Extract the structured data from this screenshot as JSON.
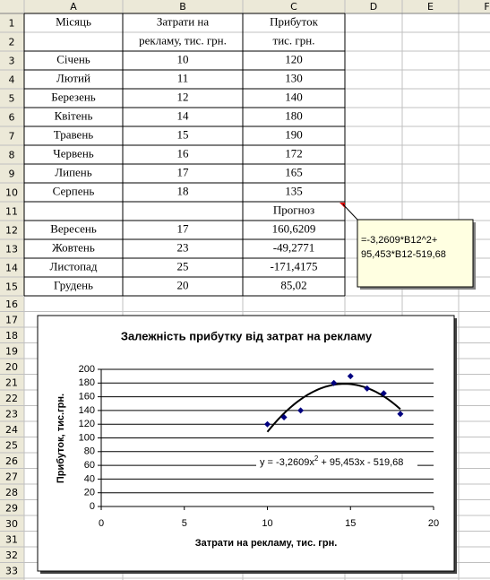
{
  "sheet": {
    "columns": [
      "A",
      "B",
      "C",
      "D",
      "E",
      "F"
    ],
    "row_numbers": [
      1,
      2,
      3,
      4,
      5,
      6,
      7,
      8,
      9,
      10,
      11,
      12,
      13,
      14,
      15,
      16,
      17,
      18,
      19,
      20,
      21,
      22,
      23,
      24,
      25,
      26,
      27,
      28,
      29,
      30,
      31,
      32,
      33
    ],
    "cells": [
      [
        "Місяць",
        "Затрати на",
        "Прибуток"
      ],
      [
        null,
        "рекламу, тис. грн.",
        "тис. грн."
      ],
      [
        "Січень",
        "10",
        "120"
      ],
      [
        "Лютий",
        "11",
        "130"
      ],
      [
        "Березень",
        "12",
        "140"
      ],
      [
        "Квітень",
        "14",
        "180"
      ],
      [
        "Травень",
        "15",
        "190"
      ],
      [
        "Червень",
        "16",
        "172"
      ],
      [
        "Липень",
        "17",
        "165"
      ],
      [
        "Серпень",
        "18",
        "135"
      ],
      [
        null,
        null,
        "Прогноз"
      ],
      [
        "Вересень",
        "17",
        "160,6209"
      ],
      [
        "Жовтень",
        "23",
        "-49,2771"
      ],
      [
        "Листопад",
        "25",
        "-171,4175"
      ],
      [
        "Грудень",
        "20",
        "85,02"
      ]
    ]
  },
  "comment": {
    "lines": [
      "=-3,2609*B12^2+",
      "95,453*B12-519,68"
    ]
  },
  "chart_data": {
    "type": "scatter",
    "title": "Залежність прибутку від затрат на рекламу",
    "x_label": "Затрати на рекламу, тис. грн.",
    "y_label": "Прибуток, тис.грн.",
    "x": [
      10,
      11,
      12,
      14,
      15,
      16,
      17,
      18
    ],
    "series": [
      {
        "color": "#000080",
        "values": [
          120,
          130,
          140,
          180,
          190,
          172,
          165,
          135
        ]
      }
    ],
    "xlim": [
      0,
      20
    ],
    "xticks": [
      0,
      5,
      10,
      15,
      20
    ],
    "ylim": [
      0,
      200
    ],
    "yticks": [
      0,
      20,
      40,
      60,
      80,
      100,
      120,
      140,
      160,
      180,
      200
    ],
    "grid": true,
    "trendline": {
      "coefficients": [
        -3.2609,
        95.453,
        -519.68
      ],
      "color": "#000000",
      "equation": [
        "y = -3,2609x",
        "2",
        " + 95,453x - 519,68"
      ]
    }
  }
}
